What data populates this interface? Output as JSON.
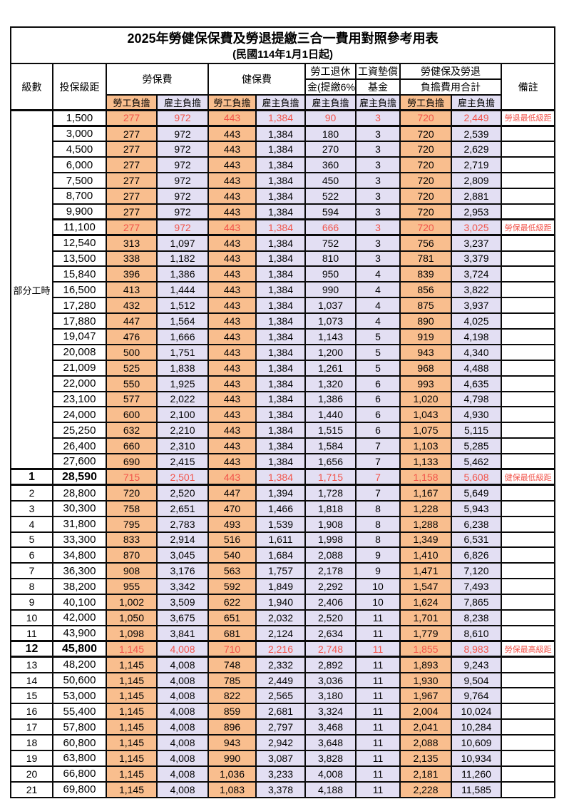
{
  "title": "2025年勞健保保費及勞退提繳三合一費用對照參考用表",
  "subtitle": "(民國114年1月1日起)",
  "header": {
    "level": "級數",
    "bracket": "投保級距",
    "labor_insurance": "勞保費",
    "health_insurance": "健保費",
    "pension_line1": "勞工退休",
    "pension_line2": "金(提繳6%)",
    "wage_fund_line1": "工資墊償",
    "wage_fund_line2": "基金",
    "total_line1": "勞健保及勞退",
    "total_line2": "負擔費用合計",
    "remark": "備註",
    "employee_share": "勞工負擔",
    "employer_share": "雇主負擔"
  },
  "part_time_label": "部分工時",
  "colors": {
    "employee_bg": "#f9be8e",
    "employer_bg": "#e3dff3",
    "highlight_red": "#f2544a",
    "border": "#0a0a0a"
  },
  "rows": [
    {
      "level": "",
      "bracket": "1,500",
      "values": [
        "277",
        "972",
        "443",
        "1,384",
        "90",
        "3",
        "720",
        "2,449"
      ],
      "remark": "勞退最低級距",
      "red": true,
      "bold": false
    },
    {
      "level": "",
      "bracket": "3,000",
      "values": [
        "277",
        "972",
        "443",
        "1,384",
        "180",
        "3",
        "720",
        "2,539"
      ],
      "remark": "",
      "red": false,
      "bold": false
    },
    {
      "level": "",
      "bracket": "4,500",
      "values": [
        "277",
        "972",
        "443",
        "1,384",
        "270",
        "3",
        "720",
        "2,629"
      ],
      "remark": "",
      "red": false,
      "bold": false
    },
    {
      "level": "",
      "bracket": "6,000",
      "values": [
        "277",
        "972",
        "443",
        "1,384",
        "360",
        "3",
        "720",
        "2,719"
      ],
      "remark": "",
      "red": false,
      "bold": false
    },
    {
      "level": "",
      "bracket": "7,500",
      "values": [
        "277",
        "972",
        "443",
        "1,384",
        "450",
        "3",
        "720",
        "2,809"
      ],
      "remark": "",
      "red": false,
      "bold": false
    },
    {
      "level": "",
      "bracket": "8,700",
      "values": [
        "277",
        "972",
        "443",
        "1,384",
        "522",
        "3",
        "720",
        "2,881"
      ],
      "remark": "",
      "red": false,
      "bold": false
    },
    {
      "level": "",
      "bracket": "9,900",
      "values": [
        "277",
        "972",
        "443",
        "1,384",
        "594",
        "3",
        "720",
        "2,953"
      ],
      "remark": "",
      "red": false,
      "bold": false
    },
    {
      "level": "",
      "bracket": "11,100",
      "values": [
        "277",
        "972",
        "443",
        "1,384",
        "666",
        "3",
        "720",
        "3,025"
      ],
      "remark": "勞保最低級距",
      "red": true,
      "bold": false
    },
    {
      "level": "",
      "bracket": "12,540",
      "values": [
        "313",
        "1,097",
        "443",
        "1,384",
        "752",
        "3",
        "756",
        "3,237"
      ],
      "remark": "",
      "red": false,
      "bold": false
    },
    {
      "level": "",
      "bracket": "13,500",
      "values": [
        "338",
        "1,182",
        "443",
        "1,384",
        "810",
        "3",
        "781",
        "3,379"
      ],
      "remark": "",
      "red": false,
      "bold": false
    },
    {
      "level": "",
      "bracket": "15,840",
      "values": [
        "396",
        "1,386",
        "443",
        "1,384",
        "950",
        "4",
        "839",
        "3,724"
      ],
      "remark": "",
      "red": false,
      "bold": false
    },
    {
      "level": "",
      "bracket": "16,500",
      "values": [
        "413",
        "1,444",
        "443",
        "1,384",
        "990",
        "4",
        "856",
        "3,822"
      ],
      "remark": "",
      "red": false,
      "bold": false
    },
    {
      "level": "",
      "bracket": "17,280",
      "values": [
        "432",
        "1,512",
        "443",
        "1,384",
        "1,037",
        "4",
        "875",
        "3,937"
      ],
      "remark": "",
      "red": false,
      "bold": false
    },
    {
      "level": "",
      "bracket": "17,880",
      "values": [
        "447",
        "1,564",
        "443",
        "1,384",
        "1,073",
        "4",
        "890",
        "4,025"
      ],
      "remark": "",
      "red": false,
      "bold": false
    },
    {
      "level": "",
      "bracket": "19,047",
      "values": [
        "476",
        "1,666",
        "443",
        "1,384",
        "1,143",
        "5",
        "919",
        "4,198"
      ],
      "remark": "",
      "red": false,
      "bold": false
    },
    {
      "level": "",
      "bracket": "20,008",
      "values": [
        "500",
        "1,751",
        "443",
        "1,384",
        "1,200",
        "5",
        "943",
        "4,340"
      ],
      "remark": "",
      "red": false,
      "bold": false
    },
    {
      "level": "",
      "bracket": "21,009",
      "values": [
        "525",
        "1,838",
        "443",
        "1,384",
        "1,261",
        "5",
        "968",
        "4,488"
      ],
      "remark": "",
      "red": false,
      "bold": false
    },
    {
      "level": "",
      "bracket": "22,000",
      "values": [
        "550",
        "1,925",
        "443",
        "1,384",
        "1,320",
        "6",
        "993",
        "4,635"
      ],
      "remark": "",
      "red": false,
      "bold": false
    },
    {
      "level": "",
      "bracket": "23,100",
      "values": [
        "577",
        "2,022",
        "443",
        "1,384",
        "1,386",
        "6",
        "1,020",
        "4,798"
      ],
      "remark": "",
      "red": false,
      "bold": false
    },
    {
      "level": "",
      "bracket": "24,000",
      "values": [
        "600",
        "2,100",
        "443",
        "1,384",
        "1,440",
        "6",
        "1,043",
        "4,930"
      ],
      "remark": "",
      "red": false,
      "bold": false
    },
    {
      "level": "",
      "bracket": "25,250",
      "values": [
        "632",
        "2,210",
        "443",
        "1,384",
        "1,515",
        "6",
        "1,075",
        "5,115"
      ],
      "remark": "",
      "red": false,
      "bold": false
    },
    {
      "level": "",
      "bracket": "26,400",
      "values": [
        "660",
        "2,310",
        "443",
        "1,384",
        "1,584",
        "7",
        "1,103",
        "5,285"
      ],
      "remark": "",
      "red": false,
      "bold": false
    },
    {
      "level": "",
      "bracket": "27,600",
      "values": [
        "690",
        "2,415",
        "443",
        "1,384",
        "1,656",
        "7",
        "1,133",
        "5,462"
      ],
      "remark": "",
      "red": false,
      "bold": false
    },
    {
      "level": "1",
      "bracket": "28,590",
      "values": [
        "715",
        "2,501",
        "443",
        "1,384",
        "1,715",
        "7",
        "1,158",
        "5,608"
      ],
      "remark": "健保最低級距",
      "red": true,
      "bold": true
    },
    {
      "level": "2",
      "bracket": "28,800",
      "values": [
        "720",
        "2,520",
        "447",
        "1,394",
        "1,728",
        "7",
        "1,167",
        "5,649"
      ],
      "remark": "",
      "red": false,
      "bold": false
    },
    {
      "level": "3",
      "bracket": "30,300",
      "values": [
        "758",
        "2,651",
        "470",
        "1,466",
        "1,818",
        "8",
        "1,228",
        "5,943"
      ],
      "remark": "",
      "red": false,
      "bold": false
    },
    {
      "level": "4",
      "bracket": "31,800",
      "values": [
        "795",
        "2,783",
        "493",
        "1,539",
        "1,908",
        "8",
        "1,288",
        "6,238"
      ],
      "remark": "",
      "red": false,
      "bold": false
    },
    {
      "level": "5",
      "bracket": "33,300",
      "values": [
        "833",
        "2,914",
        "516",
        "1,611",
        "1,998",
        "8",
        "1,349",
        "6,531"
      ],
      "remark": "",
      "red": false,
      "bold": false
    },
    {
      "level": "6",
      "bracket": "34,800",
      "values": [
        "870",
        "3,045",
        "540",
        "1,684",
        "2,088",
        "9",
        "1,410",
        "6,826"
      ],
      "remark": "",
      "red": false,
      "bold": false
    },
    {
      "level": "7",
      "bracket": "36,300",
      "values": [
        "908",
        "3,176",
        "563",
        "1,757",
        "2,178",
        "9",
        "1,471",
        "7,120"
      ],
      "remark": "",
      "red": false,
      "bold": false
    },
    {
      "level": "8",
      "bracket": "38,200",
      "values": [
        "955",
        "3,342",
        "592",
        "1,849",
        "2,292",
        "10",
        "1,547",
        "7,493"
      ],
      "remark": "",
      "red": false,
      "bold": false
    },
    {
      "level": "9",
      "bracket": "40,100",
      "values": [
        "1,002",
        "3,509",
        "622",
        "1,940",
        "2,406",
        "10",
        "1,624",
        "7,865"
      ],
      "remark": "",
      "red": false,
      "bold": false
    },
    {
      "level": "10",
      "bracket": "42,000",
      "values": [
        "1,050",
        "3,675",
        "651",
        "2,032",
        "2,520",
        "11",
        "1,701",
        "8,238"
      ],
      "remark": "",
      "red": false,
      "bold": false
    },
    {
      "level": "11",
      "bracket": "43,900",
      "values": [
        "1,098",
        "3,841",
        "681",
        "2,124",
        "2,634",
        "11",
        "1,779",
        "8,610"
      ],
      "remark": "",
      "red": false,
      "bold": false
    },
    {
      "level": "12",
      "bracket": "45,800",
      "values": [
        "1,145",
        "4,008",
        "710",
        "2,216",
        "2,748",
        "11",
        "1,855",
        "8,983"
      ],
      "remark": "勞保最高級距",
      "red": true,
      "bold": true
    },
    {
      "level": "13",
      "bracket": "48,200",
      "values": [
        "1,145",
        "4,008",
        "748",
        "2,332",
        "2,892",
        "11",
        "1,893",
        "9,243"
      ],
      "remark": "",
      "red": false,
      "bold": false
    },
    {
      "level": "14",
      "bracket": "50,600",
      "values": [
        "1,145",
        "4,008",
        "785",
        "2,449",
        "3,036",
        "11",
        "1,930",
        "9,504"
      ],
      "remark": "",
      "red": false,
      "bold": false
    },
    {
      "level": "15",
      "bracket": "53,000",
      "values": [
        "1,145",
        "4,008",
        "822",
        "2,565",
        "3,180",
        "11",
        "1,967",
        "9,764"
      ],
      "remark": "",
      "red": false,
      "bold": false
    },
    {
      "level": "16",
      "bracket": "55,400",
      "values": [
        "1,145",
        "4,008",
        "859",
        "2,681",
        "3,324",
        "11",
        "2,004",
        "10,024"
      ],
      "remark": "",
      "red": false,
      "bold": false
    },
    {
      "level": "17",
      "bracket": "57,800",
      "values": [
        "1,145",
        "4,008",
        "896",
        "2,797",
        "3,468",
        "11",
        "2,041",
        "10,284"
      ],
      "remark": "",
      "red": false,
      "bold": false
    },
    {
      "level": "18",
      "bracket": "60,800",
      "values": [
        "1,145",
        "4,008",
        "943",
        "2,942",
        "3,648",
        "11",
        "2,088",
        "10,609"
      ],
      "remark": "",
      "red": false,
      "bold": false
    },
    {
      "level": "19",
      "bracket": "63,800",
      "values": [
        "1,145",
        "4,008",
        "990",
        "3,087",
        "3,828",
        "11",
        "2,135",
        "10,934"
      ],
      "remark": "",
      "red": false,
      "bold": false
    },
    {
      "level": "20",
      "bracket": "66,800",
      "values": [
        "1,145",
        "4,008",
        "1,036",
        "3,233",
        "4,008",
        "11",
        "2,181",
        "11,260"
      ],
      "remark": "",
      "red": false,
      "bold": false
    },
    {
      "level": "21",
      "bracket": "69,800",
      "values": [
        "1,145",
        "4,008",
        "1,083",
        "3,378",
        "4,188",
        "11",
        "2,228",
        "11,585"
      ],
      "remark": "",
      "red": false,
      "bold": false
    }
  ]
}
